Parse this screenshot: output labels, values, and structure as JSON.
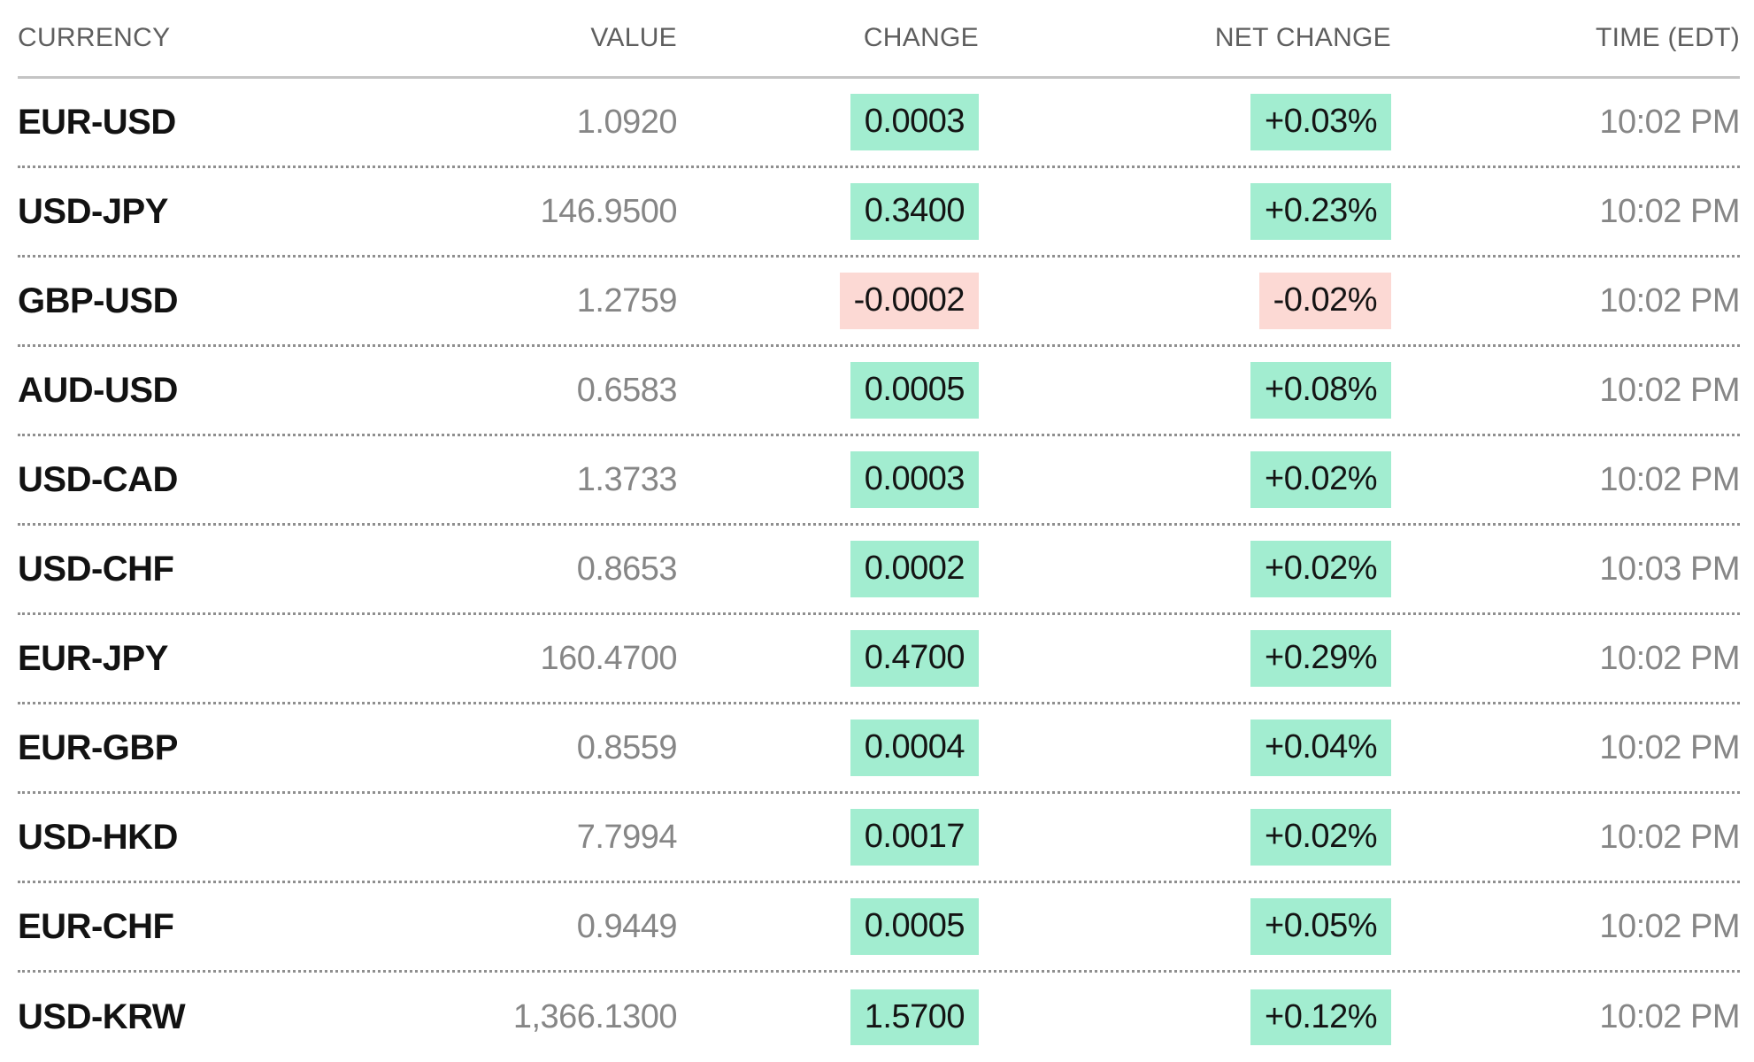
{
  "chart_data": {
    "type": "table",
    "title": "",
    "columns": [
      "CURRENCY",
      "VALUE",
      "CHANGE",
      "NET CHANGE",
      "TIME (EDT)"
    ],
    "rows": [
      {
        "currency": "EUR-USD",
        "value": "1.0920",
        "change": "0.0003",
        "net_change": "+0.03%",
        "direction": "up",
        "time": "10:02 PM"
      },
      {
        "currency": "USD-JPY",
        "value": "146.9500",
        "change": "0.3400",
        "net_change": "+0.23%",
        "direction": "up",
        "time": "10:02 PM"
      },
      {
        "currency": "GBP-USD",
        "value": "1.2759",
        "change": "-0.0002",
        "net_change": "-0.02%",
        "direction": "down",
        "time": "10:02 PM"
      },
      {
        "currency": "AUD-USD",
        "value": "0.6583",
        "change": "0.0005",
        "net_change": "+0.08%",
        "direction": "up",
        "time": "10:02 PM"
      },
      {
        "currency": "USD-CAD",
        "value": "1.3733",
        "change": "0.0003",
        "net_change": "+0.02%",
        "direction": "up",
        "time": "10:02 PM"
      },
      {
        "currency": "USD-CHF",
        "value": "0.8653",
        "change": "0.0002",
        "net_change": "+0.02%",
        "direction": "up",
        "time": "10:03 PM"
      },
      {
        "currency": "EUR-JPY",
        "value": "160.4700",
        "change": "0.4700",
        "net_change": "+0.29%",
        "direction": "up",
        "time": "10:02 PM"
      },
      {
        "currency": "EUR-GBP",
        "value": "0.8559",
        "change": "0.0004",
        "net_change": "+0.04%",
        "direction": "up",
        "time": "10:02 PM"
      },
      {
        "currency": "USD-HKD",
        "value": "7.7994",
        "change": "0.0017",
        "net_change": "+0.02%",
        "direction": "up",
        "time": "10:02 PM"
      },
      {
        "currency": "EUR-CHF",
        "value": "0.9449",
        "change": "0.0005",
        "net_change": "+0.05%",
        "direction": "up",
        "time": "10:02 PM"
      },
      {
        "currency": "USD-KRW",
        "value": "1,366.1300",
        "change": "1.5700",
        "net_change": "+0.12%",
        "direction": "up",
        "time": "10:02 PM"
      }
    ],
    "layout": {
      "legend": "none",
      "grid": "off",
      "row_separator": "dotted",
      "header_separator": "solid"
    }
  },
  "colors": {
    "positive_bg": "#a2edd0",
    "negative_bg": "#fcd9d4",
    "currency_text": "#121212",
    "value_text": "#868686",
    "header_text": "#5e5e5e",
    "header_rule": "#c4c4c4",
    "separator": "#8f8f8f"
  }
}
